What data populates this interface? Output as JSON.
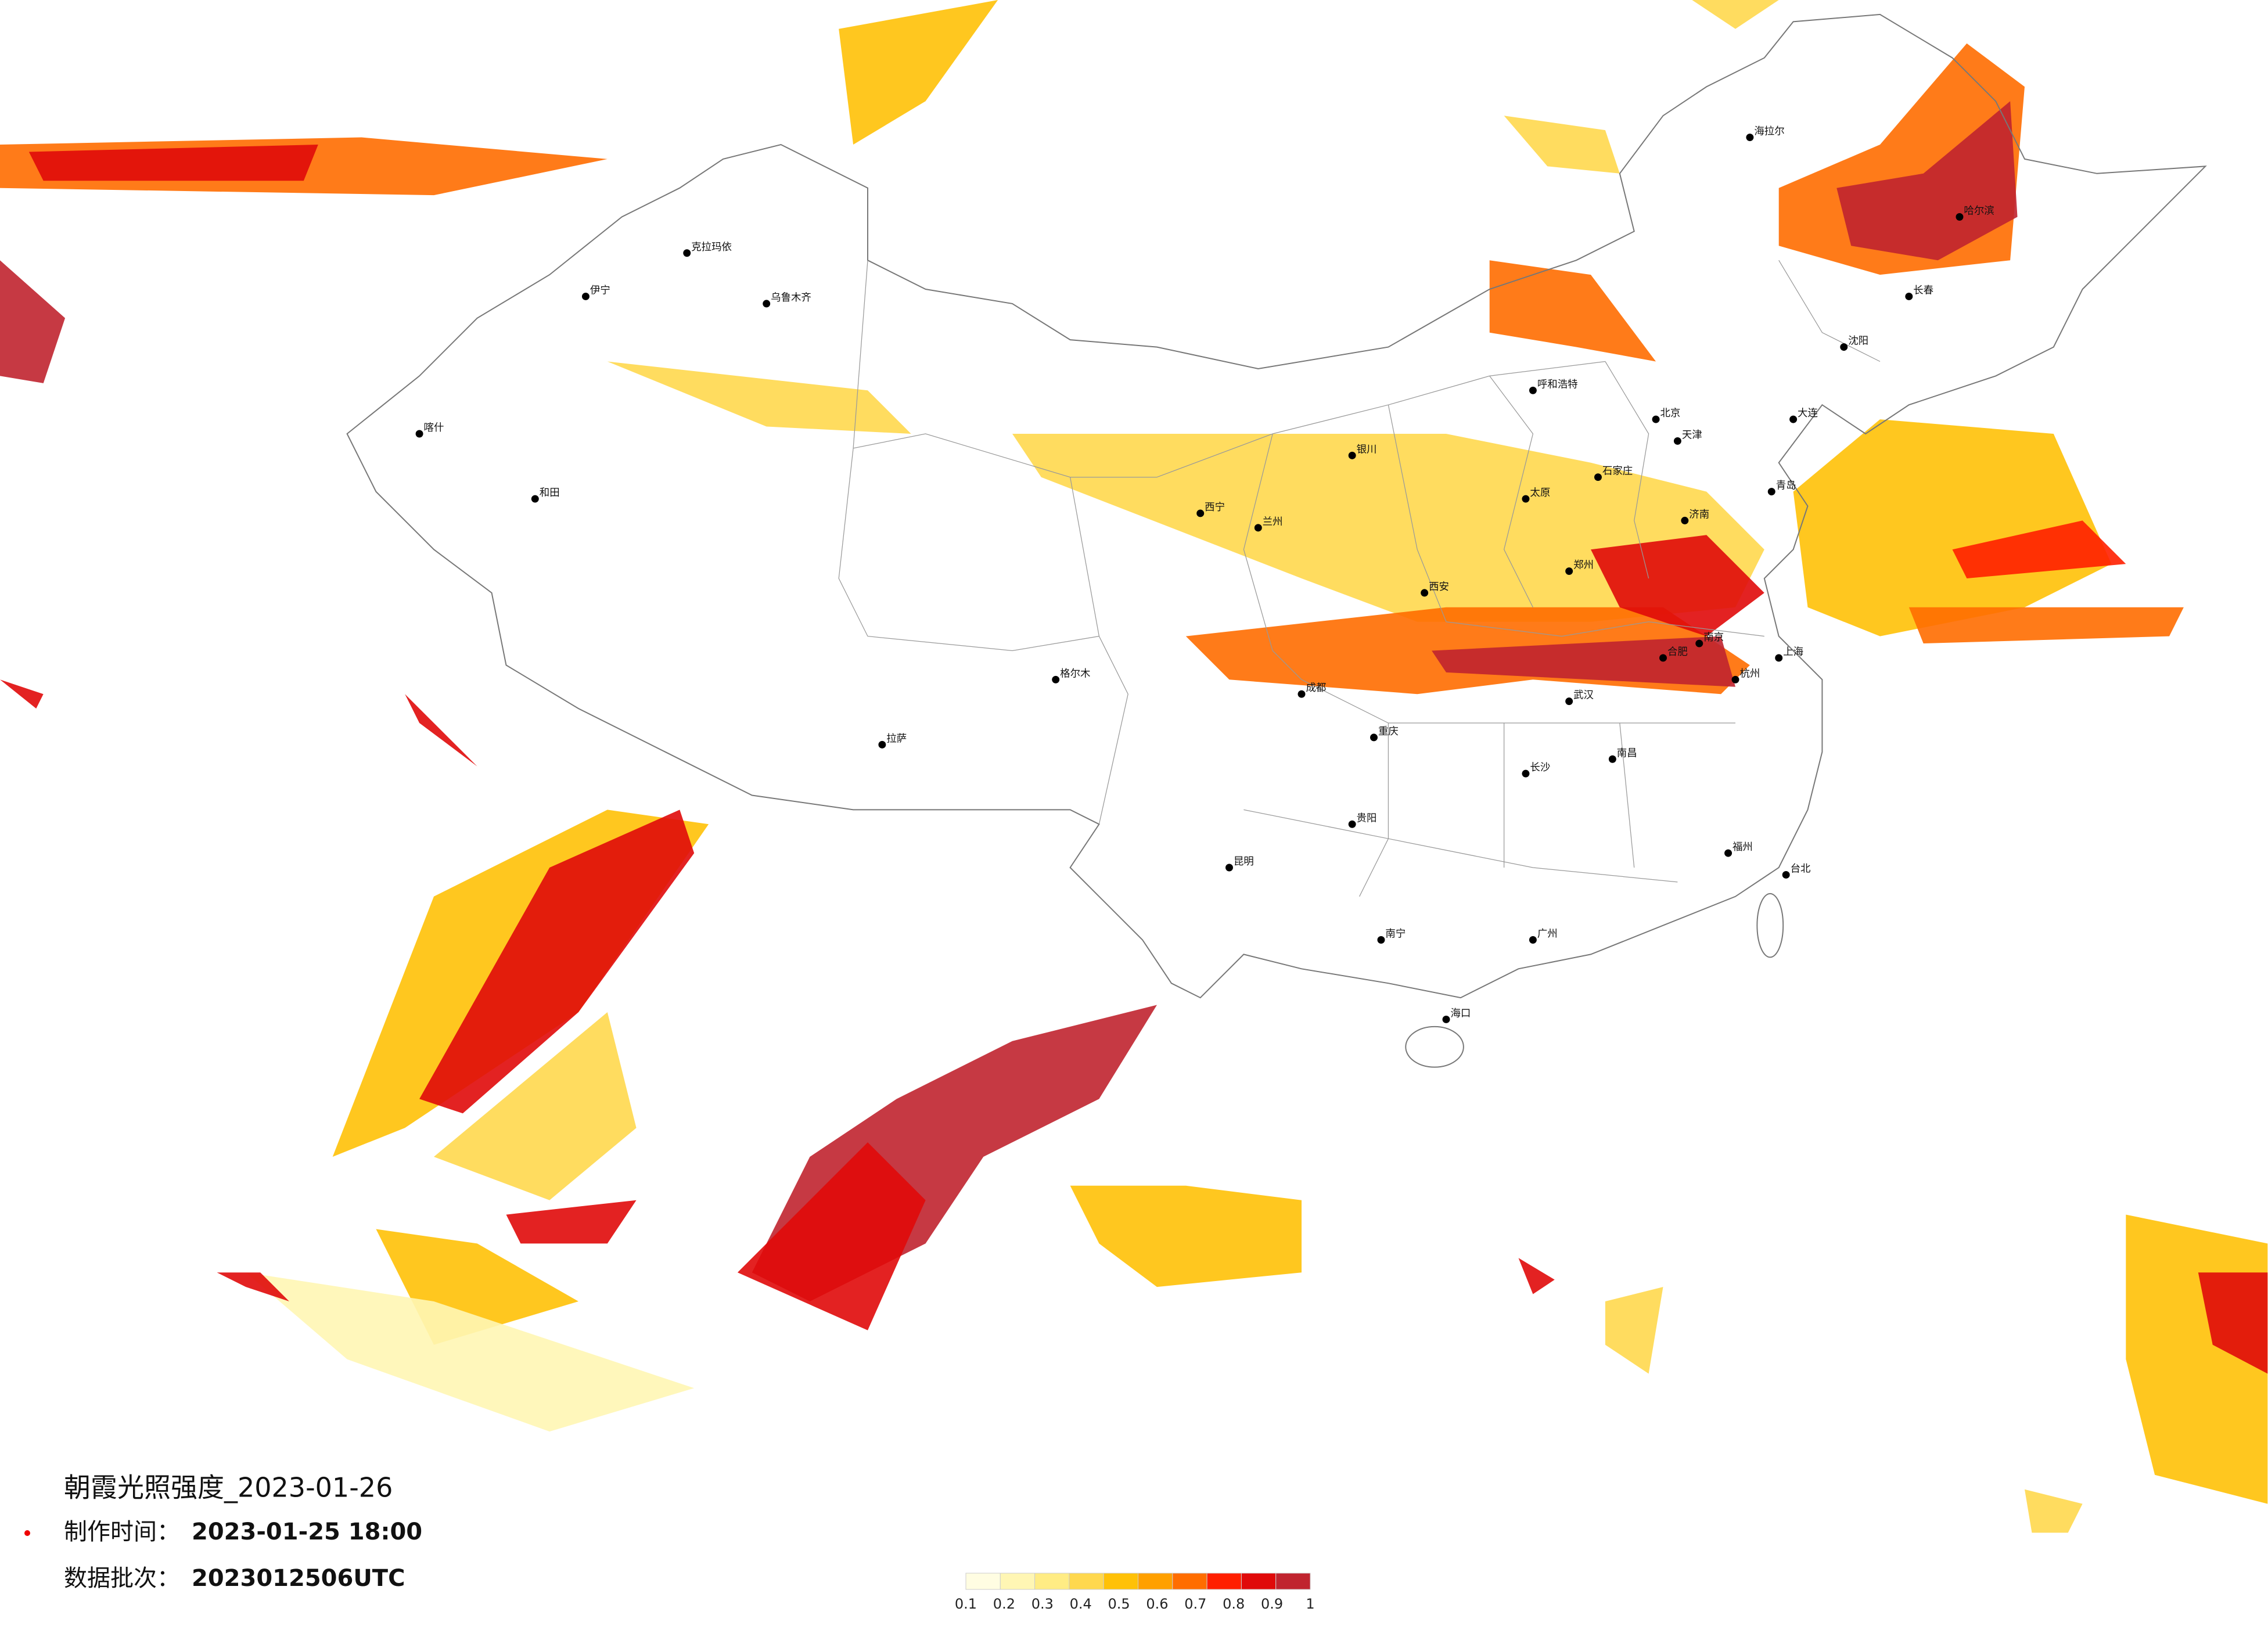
{
  "title": "朝霞光照强度_2023-01-26",
  "made_label": "制作时间：",
  "made_time": "2023-01-25 18:00",
  "batch_label": "数据批次：",
  "batch": "2023012506UTC",
  "legend": {
    "ticks": [
      0.1,
      0.2,
      0.3,
      0.4,
      0.5,
      0.6,
      0.7,
      0.8,
      0.9,
      1
    ],
    "colors": [
      "#fffde2",
      "#fff6b4",
      "#ffec84",
      "#ffd84e",
      "#ffc107",
      "#ffa000",
      "#ff6d00",
      "#ff1f00",
      "#e00a0a",
      "#c0242f"
    ]
  },
  "cities": [
    "北京",
    "天津",
    "石家庄",
    "太原",
    "呼和浩特",
    "沈阳",
    "长春",
    "哈尔滨",
    "济南",
    "郑州",
    "西安",
    "兰州",
    "西宁",
    "银川",
    "成都",
    "重庆",
    "贵阳",
    "昆明",
    "南宁",
    "广州",
    "福州",
    "杭州",
    "上海",
    "南京",
    "合肥",
    "武汉",
    "长沙",
    "南昌",
    "拉萨",
    "乌鲁木齐",
    "海口",
    "台北",
    "喀什",
    "伊宁",
    "克拉玛依",
    "和田",
    "格尔木",
    "海拉尔",
    "大连",
    "青岛"
  ]
}
